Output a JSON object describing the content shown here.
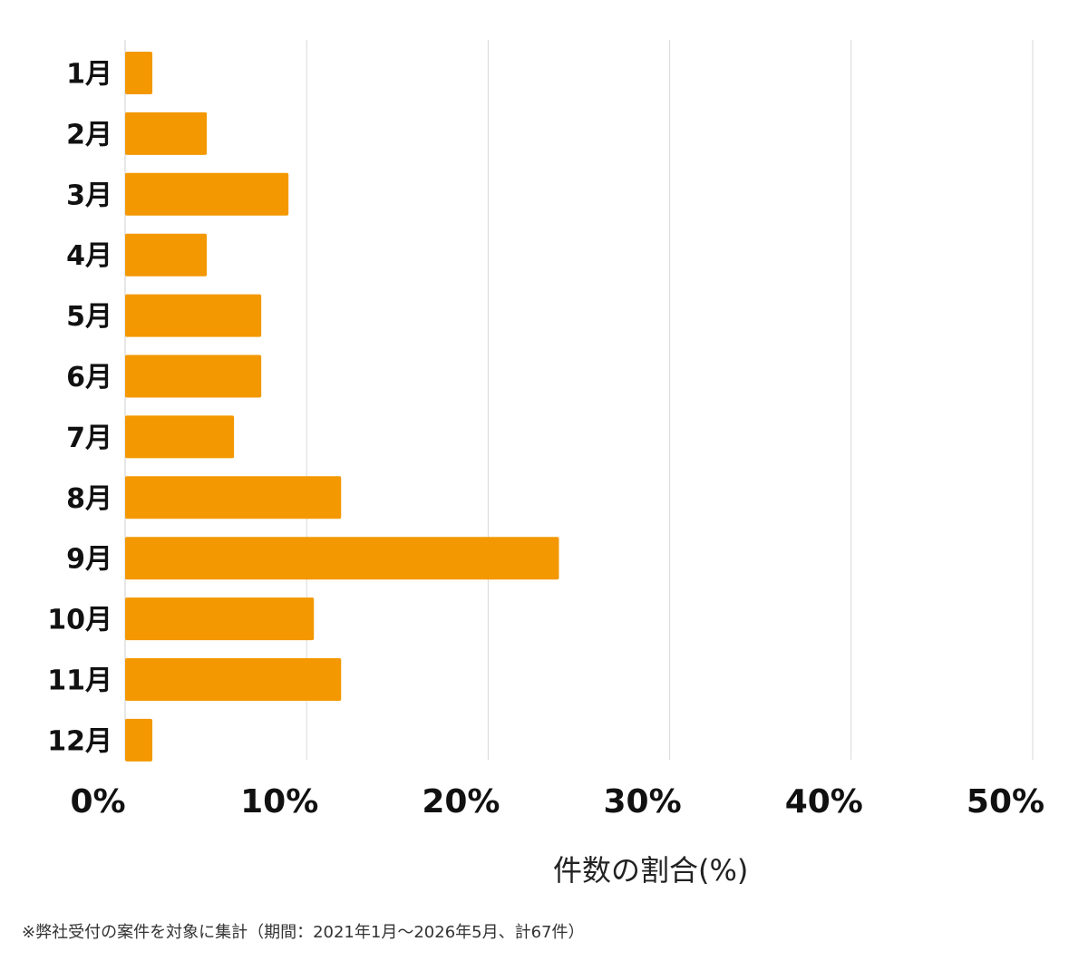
{
  "chart_data": {
    "type": "bar",
    "orientation": "horizontal",
    "categories": [
      "1月",
      "2月",
      "3月",
      "4月",
      "5月",
      "6月",
      "7月",
      "8月",
      "9月",
      "10月",
      "11月",
      "12月"
    ],
    "values": [
      1.5,
      4.5,
      9.0,
      4.5,
      7.5,
      7.5,
      6.0,
      11.9,
      23.9,
      10.4,
      11.9,
      1.5
    ],
    "xlabel": "件数の割合(%)",
    "xlim": [
      0,
      50
    ],
    "xticks": [
      "0%",
      "10%",
      "20%",
      "30%",
      "40%",
      "50%"
    ],
    "grid": true,
    "bar_color": "#f39800"
  },
  "footnote": "※弊社受付の案件を対象に集計（期間：2021年1月〜2026年5月、計67件）"
}
